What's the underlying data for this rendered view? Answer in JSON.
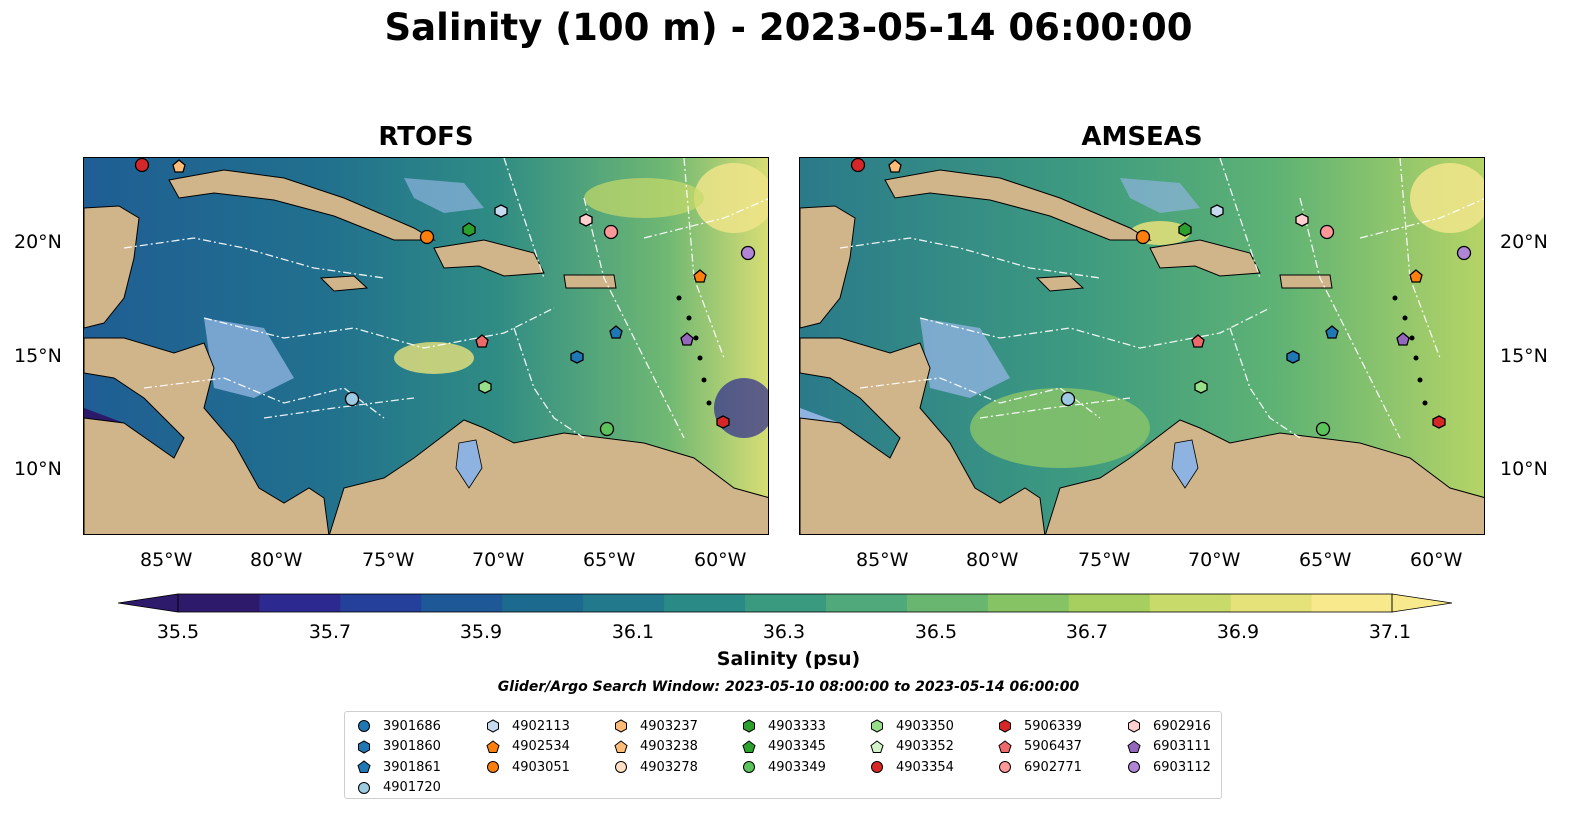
{
  "title": "Salinity (100 m) - 2023-05-14 06:00:00",
  "panels": [
    {
      "title": "RTOFS"
    },
    {
      "title": "AMSEAS"
    }
  ],
  "lon_ticks": [
    "85°W",
    "80°W",
    "75°W",
    "70°W",
    "65°W",
    "60°W"
  ],
  "lat_ticks": [
    "20°N",
    "15°N",
    "10°N"
  ],
  "colorbar": {
    "label": "Salinity (psu)",
    "ticks": [
      "35.5",
      "35.7",
      "35.9",
      "36.1",
      "36.3",
      "36.5",
      "36.7",
      "36.9",
      "37.1"
    ],
    "colors": [
      "#2e1a6b",
      "#2c2a90",
      "#25409a",
      "#1e5896",
      "#1c6b8f",
      "#21798b",
      "#2a8a86",
      "#3a9a80",
      "#4fa97a",
      "#68b66f",
      "#86c365",
      "#a6cf60",
      "#c8da6a",
      "#e6e27a",
      "#f7e98c"
    ]
  },
  "search_window": "Glider/Argo Search Window: 2023-05-10 08:00:00 to 2023-05-14 06:00:00",
  "legend": [
    {
      "id": "3901686",
      "shape": "circle",
      "color": "#1f77b4"
    },
    {
      "id": "3901860",
      "shape": "hexagon",
      "color": "#1f77b4"
    },
    {
      "id": "3901861",
      "shape": "pentagon",
      "color": "#1f77b4"
    },
    {
      "id": "4901720",
      "shape": "circle",
      "color": "#9ecae1"
    },
    {
      "id": "4902113",
      "shape": "hexagon",
      "color": "#c6dbef"
    },
    {
      "id": "4902534",
      "shape": "pentagon",
      "color": "#ff7f0e"
    },
    {
      "id": "4903051",
      "shape": "circle",
      "color": "#ff7f0e"
    },
    {
      "id": "4903237",
      "shape": "hexagon",
      "color": "#ffbb78"
    },
    {
      "id": "4903238",
      "shape": "pentagon",
      "color": "#ffbb78"
    },
    {
      "id": "4903278",
      "shape": "circle",
      "color": "#ffe0c2"
    },
    {
      "id": "4903333",
      "shape": "hexagon",
      "color": "#2ca02c"
    },
    {
      "id": "4903345",
      "shape": "pentagon",
      "color": "#2ca02c"
    },
    {
      "id": "4903349",
      "shape": "circle",
      "color": "#5cc25c"
    },
    {
      "id": "4903350",
      "shape": "hexagon",
      "color": "#98df8a"
    },
    {
      "id": "4903352",
      "shape": "pentagon",
      "color": "#d4f2c9"
    },
    {
      "id": "4903354",
      "shape": "circle",
      "color": "#d62728"
    },
    {
      "id": "5906339",
      "shape": "hexagon",
      "color": "#d62728"
    },
    {
      "id": "5906437",
      "shape": "pentagon",
      "color": "#ee6a6a"
    },
    {
      "id": "6902771",
      "shape": "circle",
      "color": "#ff9896"
    },
    {
      "id": "6902916",
      "shape": "hexagon",
      "color": "#ffd0cf"
    },
    {
      "id": "6903111",
      "shape": "pentagon",
      "color": "#9467bd"
    },
    {
      "id": "6903112",
      "shape": "circle",
      "color": "#b085d6"
    }
  ]
}
